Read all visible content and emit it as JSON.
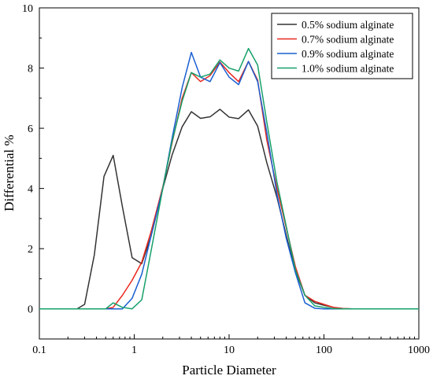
{
  "chart_data": {
    "type": "line",
    "title": "",
    "xlabel": "Particle Diameter",
    "ylabel": "Differential %",
    "xscale": "log",
    "xlim": [
      0.1,
      1000
    ],
    "ylim": [
      -1,
      10
    ],
    "x_ticks": [
      0.1,
      1,
      10,
      100,
      1000
    ],
    "x_tick_labels": [
      "0.1",
      "1",
      "10",
      "100",
      "1000"
    ],
    "y_ticks": [
      0,
      2,
      4,
      6,
      8,
      10
    ],
    "y_tick_labels": [
      "0",
      "2",
      "4",
      "6",
      "8",
      "10"
    ],
    "grid": false,
    "legend_position": "top-right",
    "series": [
      {
        "name": "0.5% sodium alginate",
        "color": "#333333",
        "x": [
          0.1,
          0.25,
          0.3,
          0.38,
          0.48,
          0.6,
          0.75,
          0.95,
          1.2,
          1.5,
          2,
          2.5,
          3.2,
          4,
          5,
          6.3,
          8,
          10,
          12.6,
          16,
          20,
          25,
          32,
          40,
          50,
          63,
          80,
          100,
          126,
          160,
          200,
          1000
        ],
        "y": [
          0,
          0,
          0.15,
          1.8,
          4.4,
          5.1,
          3.4,
          1.7,
          1.5,
          2.4,
          4.0,
          5.1,
          6.05,
          6.55,
          6.33,
          6.38,
          6.63,
          6.37,
          6.32,
          6.61,
          6.07,
          4.85,
          3.7,
          2.45,
          1.25,
          0.45,
          0.2,
          0.12,
          0.05,
          0.01,
          0,
          0
        ]
      },
      {
        "name": "0.7% sodium alginate",
        "color": "#e8281e",
        "x": [
          0.1,
          0.5,
          0.6,
          0.75,
          0.95,
          1.2,
          1.5,
          2,
          2.5,
          3.2,
          4,
          5,
          6.3,
          8,
          10,
          12.6,
          16,
          20,
          25,
          32,
          40,
          50,
          63,
          80,
          100,
          126,
          160,
          200,
          1000
        ],
        "y": [
          0,
          0,
          0.05,
          0.45,
          0.95,
          1.55,
          2.55,
          4.05,
          5.5,
          7.0,
          7.85,
          7.55,
          7.75,
          8.2,
          7.85,
          7.55,
          8.22,
          7.6,
          5.6,
          4.0,
          2.7,
          1.4,
          0.45,
          0.25,
          0.15,
          0.05,
          0.01,
          0,
          0
        ]
      },
      {
        "name": "0.9% sodium alginate",
        "color": "#1a5fd1",
        "x": [
          0.1,
          0.5,
          0.6,
          0.75,
          0.95,
          1.2,
          1.5,
          2,
          2.5,
          3.2,
          4,
          5,
          6.3,
          8,
          10,
          12.6,
          16,
          20,
          25,
          32,
          40,
          50,
          63,
          80,
          100,
          126,
          160,
          200,
          1000
        ],
        "y": [
          0,
          0,
          0,
          0,
          0.35,
          1.15,
          2.4,
          4.0,
          5.65,
          7.35,
          8.52,
          7.7,
          7.55,
          8.18,
          7.7,
          7.45,
          8.22,
          7.55,
          5.85,
          3.8,
          2.35,
          1.2,
          0.2,
          0.02,
          0,
          0,
          0,
          0,
          0
        ]
      },
      {
        "name": "1.0% sodium alginate",
        "color": "#16a06a",
        "x": [
          0.1,
          0.5,
          0.6,
          0.75,
          0.95,
          1.2,
          1.5,
          2,
          2.5,
          3.2,
          4,
          5,
          6.3,
          8,
          10,
          12.6,
          16,
          20,
          25,
          32,
          40,
          50,
          63,
          80,
          100,
          126,
          160,
          200,
          1000
        ],
        "y": [
          0,
          0,
          0.2,
          0.05,
          0,
          0.3,
          1.9,
          4.0,
          5.55,
          6.9,
          7.85,
          7.7,
          7.8,
          8.27,
          8.0,
          7.9,
          8.65,
          8.1,
          6.2,
          4.2,
          2.75,
          1.3,
          0.45,
          0.1,
          0.05,
          0.01,
          0,
          0,
          0
        ]
      }
    ]
  }
}
